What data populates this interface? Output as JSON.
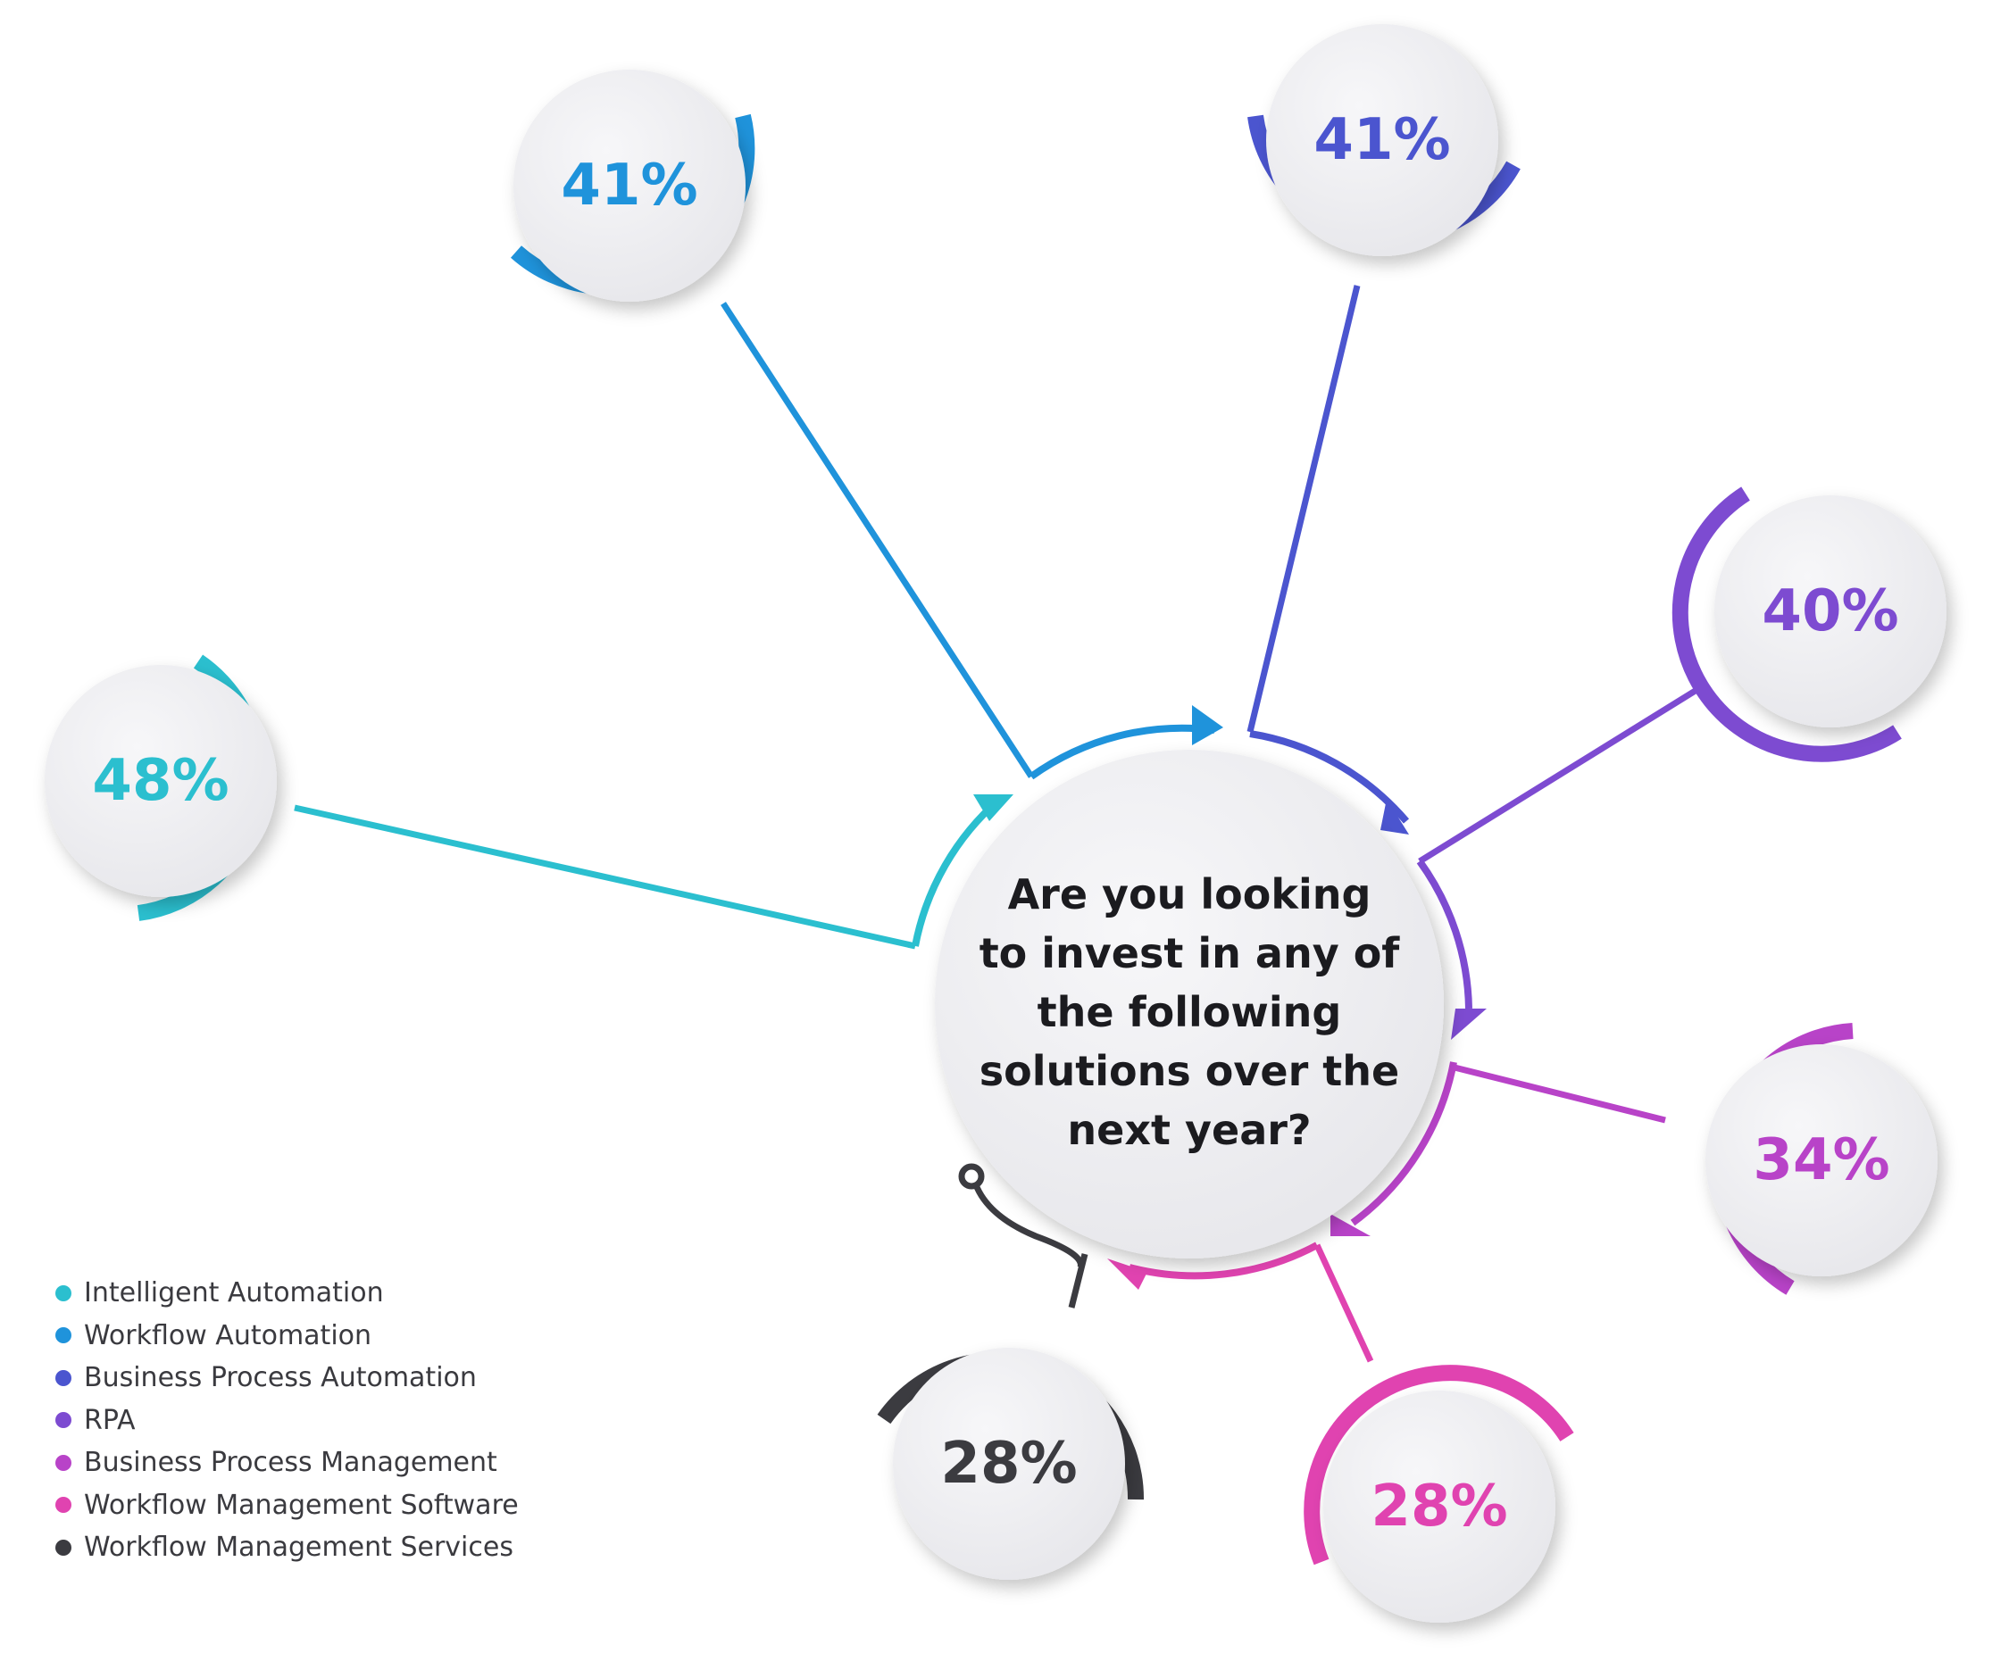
{
  "question": {
    "lines": [
      "Are you looking",
      "to invest in any of",
      "the following",
      "solutions over the",
      "next year?"
    ]
  },
  "items": [
    {
      "label": "Intelligent Automation",
      "value": "48%",
      "color": "#2bbfcf"
    },
    {
      "label": "Workflow Automation",
      "value": "41%",
      "color": "#1f93db"
    },
    {
      "label": "Business Process Automation",
      "value": "41%",
      "color": "#4b55cf"
    },
    {
      "label": "RPA",
      "value": "40%",
      "color": "#7d4bd1"
    },
    {
      "label": "Business Process Management",
      "value": "34%",
      "color": "#b843c8"
    },
    {
      "label": "Workflow Management Software",
      "value": "28%",
      "color": "#e043b0"
    },
    {
      "label": "Workflow Management Services",
      "value": "28%",
      "color": "#3b3b40"
    }
  ]
}
